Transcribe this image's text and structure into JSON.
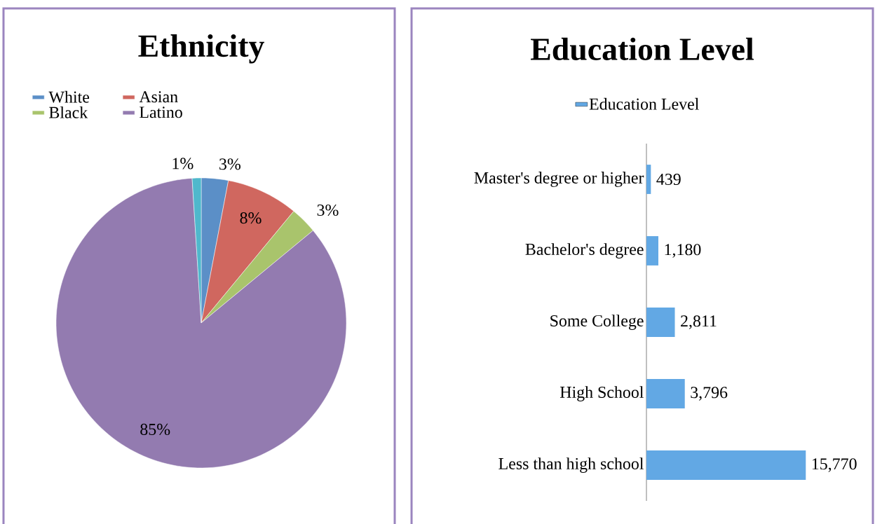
{
  "chart_data": [
    {
      "type": "pie",
      "title": "Ethnicity",
      "categories": [
        "White",
        "Asian",
        "Black",
        "Latino",
        null
      ],
      "values": [
        3,
        8,
        3,
        85,
        1
      ],
      "colors": [
        "#5b8fc7",
        "#d0675f",
        "#a9c46c",
        "#937bb0",
        "#4fb8cc"
      ],
      "value_labels": [
        "3%",
        "8%",
        "3%",
        "85%",
        "1%"
      ],
      "legend": "top left"
    },
    {
      "type": "bar",
      "orientation": "horizontal",
      "title": "Education Level",
      "categories": [
        "Master's degree or higher",
        "Bachelor's degree",
        "Some College",
        "High School",
        "Less than high school"
      ],
      "series": [
        {
          "name": "Education Level",
          "color": "#62a8e4",
          "values": [
            439,
            1180,
            2811,
            3796,
            15770
          ],
          "value_labels": [
            "439",
            "1,180",
            "2,811",
            "3,796",
            "15,770"
          ]
        }
      ],
      "legend": "top",
      "tick_labels": "y"
    }
  ]
}
